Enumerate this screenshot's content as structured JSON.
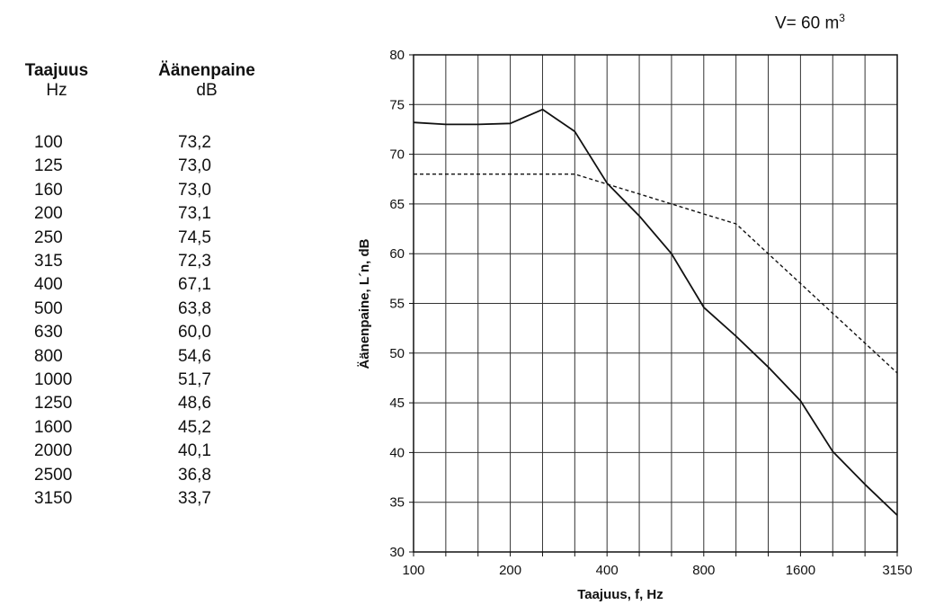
{
  "table": {
    "col1_header": "Taajuus",
    "col1_unit": "Hz",
    "col2_header": "Äänenpaine",
    "col2_unit": "dB",
    "rows": [
      {
        "freq": "100",
        "level": "73,2"
      },
      {
        "freq": "125",
        "level": "73,0"
      },
      {
        "freq": "160",
        "level": "73,0"
      },
      {
        "freq": "200",
        "level": "73,1"
      },
      {
        "freq": "250",
        "level": "74,5"
      },
      {
        "freq": "315",
        "level": "72,3"
      },
      {
        "freq": "400",
        "level": "67,1"
      },
      {
        "freq": "500",
        "level": "63,8"
      },
      {
        "freq": "630",
        "level": "60,0"
      },
      {
        "freq": "800",
        "level": "54,6"
      },
      {
        "freq": "1000",
        "level": "51,7"
      },
      {
        "freq": "1250",
        "level": "48,6"
      },
      {
        "freq": "1600",
        "level": "45,2"
      },
      {
        "freq": "2000",
        "level": "40,1"
      },
      {
        "freq": "2500",
        "level": "36,8"
      },
      {
        "freq": "3150",
        "level": "33,7"
      }
    ]
  },
  "volume": {
    "label": "V= 60 m",
    "exponent": "3"
  },
  "chart_data": {
    "type": "line",
    "xlabel": "Taajuus, f, Hz",
    "ylabel": "Äänenpaine, L´n, dB",
    "x_scale": "log",
    "x": [
      100,
      125,
      160,
      200,
      250,
      315,
      400,
      500,
      630,
      800,
      1000,
      1250,
      1600,
      2000,
      2500,
      3150
    ],
    "x_tick_labels": [
      "100",
      "200",
      "400",
      "800",
      "1600",
      "3150"
    ],
    "y_ticks": [
      30,
      35,
      40,
      45,
      50,
      55,
      60,
      65,
      70,
      75,
      80
    ],
    "ylim": [
      30,
      80
    ],
    "grid": true,
    "series": [
      {
        "style": "solid",
        "color": "#111111",
        "values": [
          73.2,
          73.0,
          73.0,
          73.1,
          74.5,
          72.3,
          67.1,
          63.8,
          60.0,
          54.6,
          51.7,
          48.6,
          45.2,
          40.1,
          36.8,
          33.7
        ]
      },
      {
        "style": "dashed",
        "color": "#111111",
        "values": [
          68,
          68,
          68,
          68,
          68,
          68,
          67,
          66,
          65,
          64,
          63,
          60,
          57,
          54,
          51,
          48
        ]
      }
    ]
  }
}
